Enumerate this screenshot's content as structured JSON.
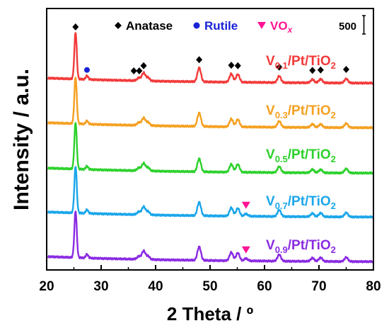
{
  "chart_data": {
    "type": "line",
    "xlabel": "2 Theta / º",
    "ylabel": "Intensity / a.u.",
    "xlim": [
      20,
      80
    ],
    "xticks": [
      "20",
      "30",
      "40",
      "50",
      "60",
      "70",
      "80"
    ],
    "scale_bar": {
      "value": 500,
      "label": "500"
    },
    "legend": {
      "placement": "top",
      "entries": [
        {
          "label": "Anatase",
          "marker": "diamond",
          "color": "#000000"
        },
        {
          "label": "Rutile",
          "marker": "circle",
          "color": "#1a22d6"
        },
        {
          "label": "VO",
          "subscript": "x",
          "marker": "triangle-down",
          "color": "#ff1493"
        }
      ]
    },
    "series": [
      {
        "name_main": "V",
        "name_sub": "0.1",
        "name_rest": "/Pt/TiO",
        "name_sub2": "2",
        "color": "#f23a3a",
        "baseline": 0.2,
        "peaks": [
          [
            25.3,
            1.0
          ],
          [
            27.4,
            0.08
          ],
          [
            36.9,
            0.06
          ],
          [
            37.8,
            0.17
          ],
          [
            38.6,
            0.07
          ],
          [
            48.0,
            0.3
          ],
          [
            53.9,
            0.18
          ],
          [
            55.1,
            0.17
          ],
          [
            62.7,
            0.14
          ],
          [
            68.8,
            0.07
          ],
          [
            70.3,
            0.08
          ],
          [
            75.0,
            0.09
          ]
        ]
      },
      {
        "name_main": "V",
        "name_sub": "0.3",
        "name_rest": "/Pt/TiO",
        "name_sub2": "2",
        "color": "#f5a020",
        "baseline": 0.2,
        "peaks": [
          [
            25.3,
            1.0
          ],
          [
            27.4,
            0.07
          ],
          [
            36.9,
            0.06
          ],
          [
            37.8,
            0.16
          ],
          [
            38.6,
            0.07
          ],
          [
            48.0,
            0.29
          ],
          [
            53.9,
            0.17
          ],
          [
            55.1,
            0.16
          ],
          [
            62.7,
            0.13
          ],
          [
            68.8,
            0.07
          ],
          [
            70.3,
            0.07
          ],
          [
            75.0,
            0.09
          ]
        ]
      },
      {
        "name_main": "V",
        "name_sub": "0.5",
        "name_rest": "/Pt/TiO",
        "name_sub2": "2",
        "color": "#2cd12c",
        "baseline": 0.2,
        "peaks": [
          [
            25.3,
            1.0
          ],
          [
            27.4,
            0.07
          ],
          [
            36.9,
            0.06
          ],
          [
            37.8,
            0.16
          ],
          [
            38.6,
            0.07
          ],
          [
            48.0,
            0.28
          ],
          [
            53.9,
            0.17
          ],
          [
            55.1,
            0.17
          ],
          [
            62.7,
            0.13
          ],
          [
            68.8,
            0.07
          ],
          [
            70.3,
            0.07
          ],
          [
            75.0,
            0.09
          ]
        ]
      },
      {
        "name_main": "V",
        "name_sub": "0.7",
        "name_rest": "/Pt/TiO",
        "name_sub2": "2",
        "color": "#1aa6ea",
        "baseline": 0.2,
        "peaks": [
          [
            25.3,
            1.0
          ],
          [
            27.4,
            0.08
          ],
          [
            36.9,
            0.06
          ],
          [
            37.8,
            0.17
          ],
          [
            38.6,
            0.07
          ],
          [
            48.0,
            0.29
          ],
          [
            53.9,
            0.18
          ],
          [
            55.1,
            0.17
          ],
          [
            56.6,
            0.05
          ],
          [
            62.7,
            0.14
          ],
          [
            68.8,
            0.07
          ],
          [
            70.3,
            0.08
          ],
          [
            75.0,
            0.09
          ]
        ]
      },
      {
        "name_main": "V",
        "name_sub": "0.9",
        "name_rest": "/Pt/TiO",
        "name_sub2": "2",
        "color": "#8a2be2",
        "baseline": 0.2,
        "peaks": [
          [
            25.3,
            1.0
          ],
          [
            27.4,
            0.08
          ],
          [
            36.9,
            0.06
          ],
          [
            37.8,
            0.18
          ],
          [
            38.6,
            0.07
          ],
          [
            48.0,
            0.29
          ],
          [
            53.9,
            0.18
          ],
          [
            55.1,
            0.17
          ],
          [
            56.6,
            0.05
          ],
          [
            62.7,
            0.14
          ],
          [
            68.8,
            0.07
          ],
          [
            70.3,
            0.08
          ],
          [
            75.0,
            0.09
          ]
        ]
      }
    ],
    "markers": [
      {
        "series": 0,
        "type": "anatase",
        "x": [
          25.3,
          36.0,
          37.0,
          37.8,
          48.0,
          53.9,
          55.1,
          62.7,
          68.8,
          70.3,
          75.0
        ]
      },
      {
        "series": 0,
        "type": "rutile",
        "x": [
          27.4
        ]
      },
      {
        "series": 3,
        "type": "vox",
        "x": [
          56.6
        ]
      },
      {
        "series": 4,
        "type": "vox",
        "x": [
          56.6
        ]
      }
    ]
  }
}
